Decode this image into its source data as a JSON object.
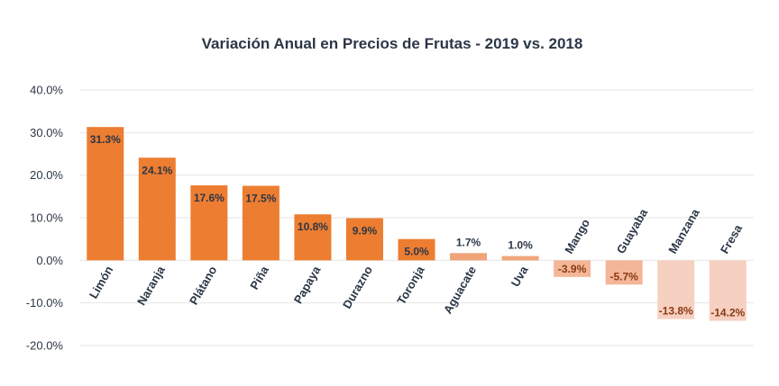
{
  "chart_data": {
    "type": "bar",
    "title": "Variación Anual en Precios de Frutas - 2019 vs. 2018",
    "xlabel": "",
    "ylabel": "",
    "ylim": [
      -20,
      40
    ],
    "yticks": [
      40,
      30,
      20,
      10,
      0,
      -10,
      -20
    ],
    "ytick_labels": [
      "40.0%",
      "30.0%",
      "20.0%",
      "10.0%",
      "0.0%",
      "-10.0%",
      "-20.0%"
    ],
    "grid": true,
    "categories": [
      "Limón",
      "Naranja",
      "Plátano",
      "Piña",
      "Papaya",
      "Durazno",
      "Toronja",
      "Aguacate",
      "Uva",
      "Mango",
      "Guayaba",
      "Manzana",
      "Fresa"
    ],
    "values": [
      31.3,
      24.1,
      17.6,
      17.5,
      10.8,
      9.9,
      5.0,
      1.7,
      1.0,
      -3.9,
      -5.7,
      -13.8,
      -14.2
    ],
    "data_labels": [
      "31.3%",
      "24.1%",
      "17.6%",
      "17.5%",
      "10.8%",
      "9.9%",
      "5.0%",
      "1.7%",
      "1.0%",
      "-3.9%",
      "-5.7%",
      "-13.8%",
      "-14.2%"
    ],
    "colors": {
      "strong_positive": "#ed7d31",
      "weak_positive": "#f0a477",
      "negative_mid": "#f3b698",
      "negative_strong": "#f6d0c0",
      "label_dark": "#2b3646",
      "label_negative": "#8a3a12"
    }
  }
}
